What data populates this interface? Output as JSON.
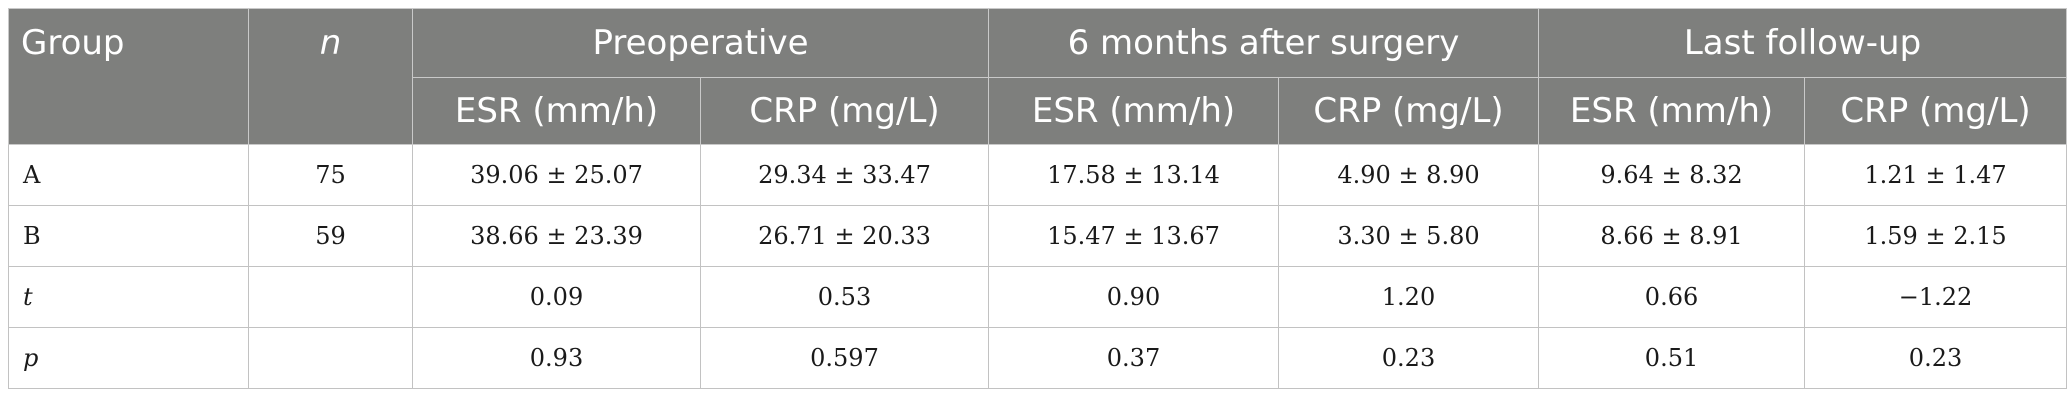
{
  "table": {
    "header": {
      "group": "Group",
      "n": "n",
      "periods": [
        "Preoperative",
        "6 months after surgery",
        "Last follow-up"
      ],
      "sub": [
        "ESR (mm/h)",
        "CRP (mg/L)"
      ]
    },
    "rows": [
      {
        "label": "A",
        "n": "75",
        "cells": [
          "39.06 ± 25.07",
          "29.34 ± 33.47",
          "17.58 ± 13.14",
          "4.90 ± 8.90",
          "9.64 ± 8.32",
          "1.21 ± 1.47"
        ]
      },
      {
        "label": "B",
        "n": "59",
        "cells": [
          "38.66 ± 23.39",
          "26.71 ± 20.33",
          "15.47 ± 13.67",
          "3.30 ± 5.80",
          "8.66 ± 8.91",
          "1.59 ± 2.15"
        ]
      },
      {
        "label": "t",
        "n": "",
        "cells": [
          "0.09",
          "0.53",
          "0.90",
          "1.20",
          "0.66",
          "−1.22"
        ]
      },
      {
        "label": "p",
        "n": "",
        "cells": [
          "0.93",
          "0.597",
          "0.37",
          "0.23",
          "0.51",
          "0.23"
        ]
      }
    ]
  }
}
